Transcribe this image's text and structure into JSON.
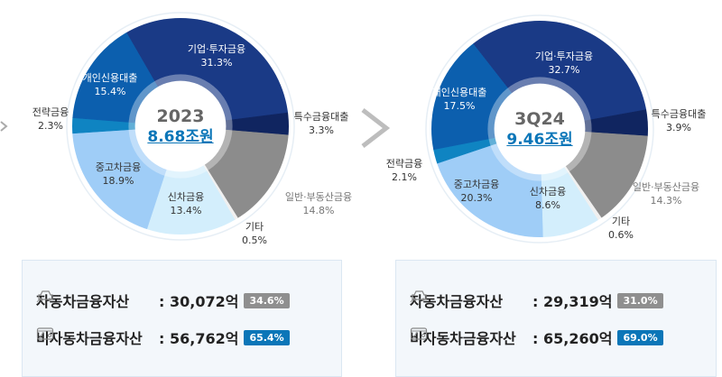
{
  "chart_data": [
    {
      "type": "pie",
      "subtype": "donut",
      "title": "2023",
      "total_label": "8.68조원",
      "categories": [
        "기업·투자금융",
        "특수금융대출",
        "일반·부동산금융",
        "기타",
        "신차금융",
        "중고차금융",
        "전략금융",
        "개인신용대출"
      ],
      "values": [
        31.3,
        3.3,
        14.8,
        0.5,
        13.4,
        18.9,
        2.3,
        15.4
      ],
      "colors": [
        "#1a3a86",
        "#102560",
        "#8c8c8c",
        "#f0f0f0",
        "#d3eefc",
        "#9fcdf7",
        "#0f84c2",
        "#0c5fae"
      ],
      "unit": "%"
    },
    {
      "type": "pie",
      "subtype": "donut",
      "title": "3Q24",
      "total_label": "9.46조원",
      "categories": [
        "기업·투자금융",
        "특수금융대출",
        "일반·부동산금융",
        "기타",
        "신차금융",
        "중고차금융",
        "전략금융",
        "개인신용대출"
      ],
      "values": [
        32.7,
        3.9,
        14.3,
        0.6,
        8.6,
        20.3,
        2.1,
        17.5
      ],
      "colors": [
        "#1a3a86",
        "#102560",
        "#8c8c8c",
        "#f0f0f0",
        "#d3eefc",
        "#9fcdf7",
        "#0f84c2",
        "#0c5fae"
      ],
      "unit": "%"
    }
  ],
  "left": {
    "year": "2023",
    "total": "8.68조원",
    "labels": {
      "corp": {
        "name": "기업·투자금융",
        "pct": "31.3%"
      },
      "special": {
        "name": "특수금융대출",
        "pct": "3.3%"
      },
      "general": {
        "name": "일반·부동산금융",
        "pct": "14.8%"
      },
      "other": {
        "name": "기타",
        "pct": "0.5%"
      },
      "newcar": {
        "name": "신차금융",
        "pct": "13.4%"
      },
      "usedcar": {
        "name": "중고차금융",
        "pct": "18.9%"
      },
      "strategic": {
        "name": "전략금융",
        "pct": "2.3%"
      },
      "personal": {
        "name": "개인신용대출",
        "pct": "15.4%"
      }
    },
    "summary": {
      "auto": {
        "label": "자동차금융자산",
        "value": ": 30,072억",
        "pct": "34.6%"
      },
      "nonauto": {
        "label": "비자동차금융자산",
        "value": ": 56,762억",
        "pct": "65.4%"
      }
    }
  },
  "right": {
    "year": "3Q24",
    "total": "9.46조원",
    "labels": {
      "corp": {
        "name": "기업·투자금융",
        "pct": "32.7%"
      },
      "special": {
        "name": "특수금융대출",
        "pct": "3.9%"
      },
      "general": {
        "name": "일반·부동산금융",
        "pct": "14.3%"
      },
      "other": {
        "name": "기타",
        "pct": "0.6%"
      },
      "newcar": {
        "name": "신차금융",
        "pct": "8.6%"
      },
      "usedcar": {
        "name": "중고차금융",
        "pct": "20.3%"
      },
      "strategic": {
        "name": "전략금융",
        "pct": "2.1%"
      },
      "personal": {
        "name": "개인신용대출",
        "pct": "17.5%"
      }
    },
    "summary": {
      "auto": {
        "label": "자동차금융자산",
        "value": ": 29,319억",
        "pct": "31.0%"
      },
      "nonauto": {
        "label": "비자동차금융자산",
        "value": ": 65,260억",
        "pct": "69.0%"
      }
    }
  },
  "colors": {
    "badge_gray": "#8f8f8f",
    "badge_blue": "#0b76b8",
    "total_blue": "#0b76b8"
  },
  "icons": {
    "car": "car-finance-icon",
    "card": "card-percent-icon",
    "arrow": "chevron-right-icon"
  }
}
